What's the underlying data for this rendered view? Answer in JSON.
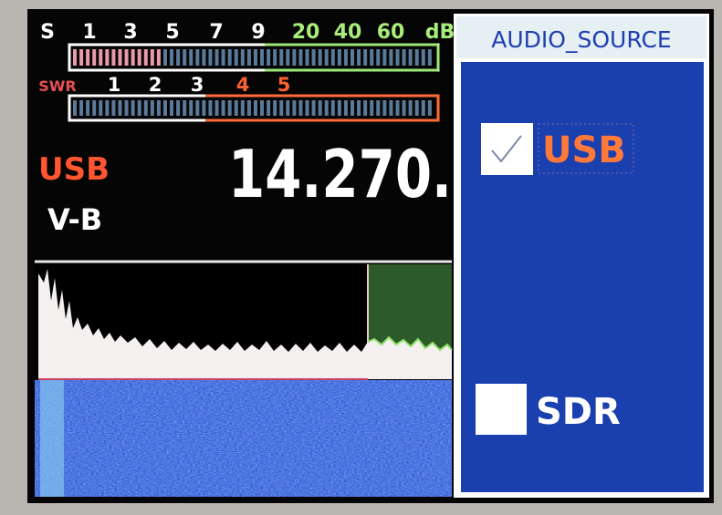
{
  "s_meter": {
    "labels": [
      "S",
      "1",
      "3",
      "5",
      "7",
      "9",
      "20",
      "40",
      "60",
      "dB"
    ]
  },
  "swr_meter": {
    "labels": [
      "SWR",
      "1",
      "2",
      "3",
      "4",
      "5"
    ]
  },
  "mode": "USB",
  "vfo": "V-B",
  "frequency": "14.270.",
  "dialog": {
    "title": "AUDIO_SOURCE",
    "options": [
      {
        "label": "USB",
        "checked": true
      },
      {
        "label": "SDR",
        "checked": false
      }
    ]
  }
}
